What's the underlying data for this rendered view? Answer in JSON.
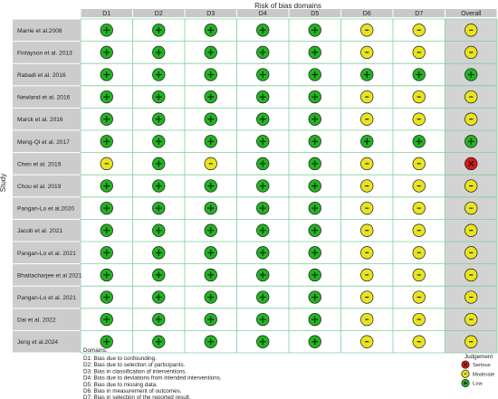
{
  "chart_data": {
    "type": "table",
    "title": "Risk of bias domains",
    "ylabel": "Study",
    "domains": [
      "D1",
      "D2",
      "D3",
      "D4",
      "D5",
      "D6",
      "D7",
      "Overall"
    ],
    "studies": [
      {
        "name": "Marrie et al.2008",
        "judgements": [
          "low",
          "low",
          "low",
          "low",
          "low",
          "moderate",
          "moderate",
          "moderate"
        ]
      },
      {
        "name": "Finlayson et al. 2013",
        "judgements": [
          "low",
          "low",
          "low",
          "low",
          "low",
          "moderate",
          "moderate",
          "moderate"
        ]
      },
      {
        "name": "Rabadi et al. 2016",
        "judgements": [
          "low",
          "low",
          "low",
          "low",
          "low",
          "low",
          "low",
          "low"
        ]
      },
      {
        "name": "Newland et al. 2016",
        "judgements": [
          "low",
          "low",
          "low",
          "low",
          "low",
          "moderate",
          "moderate",
          "moderate"
        ]
      },
      {
        "name": "Marck et al. 2016",
        "judgements": [
          "low",
          "low",
          "low",
          "low",
          "low",
          "moderate",
          "moderate",
          "moderate"
        ]
      },
      {
        "name": "Meng-Qi et al. 2017",
        "judgements": [
          "low",
          "low",
          "low",
          "low",
          "low",
          "low",
          "low",
          "low"
        ]
      },
      {
        "name": "Chen et al. 2019",
        "judgements": [
          "moderate",
          "low",
          "moderate",
          "low",
          "low",
          "moderate",
          "moderate",
          "serious"
        ]
      },
      {
        "name": "Chou et al. 2019",
        "judgements": [
          "low",
          "low",
          "low",
          "low",
          "low",
          "moderate",
          "moderate",
          "moderate"
        ]
      },
      {
        "name": "Pangan-Lo et al.2020",
        "judgements": [
          "low",
          "low",
          "low",
          "low",
          "low",
          "moderate",
          "moderate",
          "moderate"
        ]
      },
      {
        "name": "Jacob et al. 2021",
        "judgements": [
          "low",
          "low",
          "low",
          "low",
          "low",
          "moderate",
          "moderate",
          "moderate"
        ]
      },
      {
        "name": "Pangan-Lo et al. 2021",
        "judgements": [
          "low",
          "low",
          "low",
          "low",
          "low",
          "moderate",
          "moderate",
          "moderate"
        ]
      },
      {
        "name": "Bhattacharjee et al 2021",
        "judgements": [
          "low",
          "low",
          "low",
          "low",
          "low",
          "moderate",
          "moderate",
          "moderate"
        ]
      },
      {
        "name": "Pangan-Lo  et al. 2021",
        "judgements": [
          "low",
          "low",
          "low",
          "low",
          "low",
          "moderate",
          "moderate",
          "moderate"
        ]
      },
      {
        "name": "Dai et al. 2022",
        "judgements": [
          "low",
          "low",
          "low",
          "low",
          "low",
          "moderate",
          "moderate",
          "moderate"
        ]
      },
      {
        "name": "Jeng et al.2024",
        "judgements": [
          "low",
          "low",
          "low",
          "low",
          "low",
          "moderate",
          "moderate",
          "moderate"
        ]
      }
    ],
    "judgement_styles": {
      "low": {
        "color": "#1fb61f",
        "symbol": "+"
      },
      "moderate": {
        "color": "#e8e41e",
        "symbol": "-"
      },
      "serious": {
        "color": "#d61a1a",
        "symbol": "X"
      }
    },
    "domains_legend_title": "Domains:",
    "domain_descriptions": [
      "D1: Bias due to confounding.",
      "D2: Bias due to selection of participants.",
      "D3: Bias in classification of interventions.",
      "D4: Bias due to deviations from intended interventions.",
      "D5: Bias due to missing data.",
      "D6: Bias in measurement of outcomes.",
      "D7: Bias in selection of the reported result."
    ],
    "judgement_legend": {
      "title": "Judgement",
      "items": [
        {
          "key": "serious",
          "label": "Serious"
        },
        {
          "key": "moderate",
          "label": "Moderate"
        },
        {
          "key": "low",
          "label": "Low"
        }
      ]
    },
    "colors": {
      "header_bg": "#c8c8c8",
      "study_bg": "#cccccc",
      "overall_bg": "#d3d3d3",
      "grid_line": "#7fcf9a"
    }
  }
}
